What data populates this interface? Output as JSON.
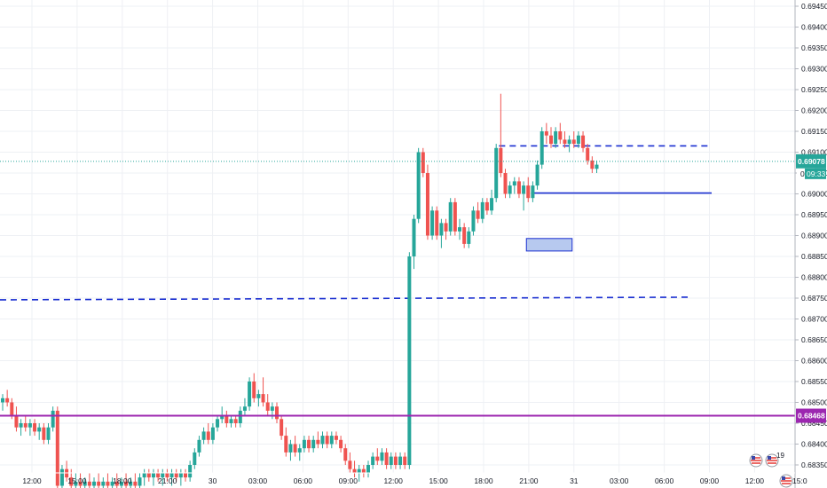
{
  "chart_data": {
    "type": "candlestick",
    "title": "",
    "xlabel": "",
    "ylabel": "",
    "grid": true,
    "ylim": [
      0.68335,
      0.69465
    ],
    "y_ticks": [
      "0.69450",
      "0.69400",
      "0.69350",
      "0.69300",
      "0.69250",
      "0.69200",
      "0.69150",
      "0.69100",
      "0.69050",
      "0.69000",
      "0.68950",
      "0.68900",
      "0.68850",
      "0.68800",
      "0.68750",
      "0.68700",
      "0.68650",
      "0.68600",
      "0.68550",
      "0.68500",
      "0.68450",
      "0.68400",
      "0.68350"
    ],
    "x_ticks": [
      "12:00",
      "15:00",
      "18:00",
      "21:00",
      "30",
      "03:00",
      "06:00",
      "09:00",
      "12:00",
      "15:00",
      "18:00",
      "21:00",
      "31",
      "03:00",
      "06:00",
      "09:00",
      "12:00",
      "15:0"
    ],
    "current_price": {
      "label": "0.69078",
      "countdown": "09:33",
      "value": 0.69078,
      "color": "#26a69a"
    },
    "price_marker": {
      "label": "0.68468",
      "value": 0.68468,
      "color": "#9c27b0"
    },
    "partial_tick": "0",
    "up_color": "#26a69a",
    "down_color": "#ef5350",
    "ohlc": [
      [
        0.685,
        0.6852,
        0.6848,
        0.6851
      ],
      [
        0.6851,
        0.6853,
        0.6849,
        0.685
      ],
      [
        0.685,
        0.6851,
        0.6846,
        0.6847
      ],
      [
        0.6847,
        0.6849,
        0.6843,
        0.6844
      ],
      [
        0.6844,
        0.6846,
        0.6842,
        0.6845
      ],
      [
        0.6845,
        0.6847,
        0.6843,
        0.6844
      ],
      [
        0.6844,
        0.6846,
        0.6842,
        0.6845
      ],
      [
        0.6845,
        0.6846,
        0.6842,
        0.6843
      ],
      [
        0.6843,
        0.6845,
        0.6841,
        0.6844
      ],
      [
        0.6844,
        0.6845,
        0.684,
        0.6841
      ],
      [
        0.6841,
        0.6845,
        0.684,
        0.6844
      ],
      [
        0.6844,
        0.6849,
        0.6843,
        0.6848
      ],
      [
        0.6848,
        0.6849,
        0.6828,
        0.683
      ],
      [
        0.683,
        0.6835,
        0.6828,
        0.6834
      ],
      [
        0.6834,
        0.6836,
        0.6831,
        0.6832
      ],
      [
        0.6832,
        0.6834,
        0.6828,
        0.683
      ],
      [
        0.683,
        0.6833,
        0.6828,
        0.6831
      ],
      [
        0.6831,
        0.6833,
        0.6828,
        0.683
      ],
      [
        0.683,
        0.6832,
        0.6828,
        0.6831
      ],
      [
        0.6831,
        0.6833,
        0.6829,
        0.683
      ],
      [
        0.683,
        0.6832,
        0.6828,
        0.6831
      ],
      [
        0.6831,
        0.6833,
        0.6829,
        0.683
      ],
      [
        0.683,
        0.6832,
        0.6828,
        0.6831
      ],
      [
        0.6831,
        0.6833,
        0.6829,
        0.683
      ],
      [
        0.683,
        0.6832,
        0.6828,
        0.6831
      ],
      [
        0.6831,
        0.6833,
        0.6829,
        0.683
      ],
      [
        0.683,
        0.6832,
        0.6828,
        0.6831
      ],
      [
        0.6831,
        0.6833,
        0.6829,
        0.683
      ],
      [
        0.683,
        0.6832,
        0.6828,
        0.6831
      ],
      [
        0.6831,
        0.6833,
        0.6829,
        0.683
      ],
      [
        0.683,
        0.6833,
        0.6828,
        0.6832
      ],
      [
        0.6832,
        0.6834,
        0.683,
        0.6833
      ],
      [
        0.6833,
        0.6834,
        0.6831,
        0.6832
      ],
      [
        0.6832,
        0.6834,
        0.683,
        0.6833
      ],
      [
        0.6833,
        0.6834,
        0.6831,
        0.6832
      ],
      [
        0.6832,
        0.6834,
        0.683,
        0.6833
      ],
      [
        0.6833,
        0.6834,
        0.6831,
        0.6832
      ],
      [
        0.6832,
        0.6834,
        0.683,
        0.6833
      ],
      [
        0.6833,
        0.6834,
        0.6831,
        0.6832
      ],
      [
        0.6832,
        0.6834,
        0.683,
        0.6833
      ],
      [
        0.6833,
        0.6834,
        0.6831,
        0.6832
      ],
      [
        0.6832,
        0.6836,
        0.6831,
        0.6835
      ],
      [
        0.6835,
        0.6839,
        0.6834,
        0.6838
      ],
      [
        0.6838,
        0.6842,
        0.6837,
        0.6841
      ],
      [
        0.6841,
        0.6844,
        0.684,
        0.6843
      ],
      [
        0.6843,
        0.6845,
        0.684,
        0.6841
      ],
      [
        0.6841,
        0.6845,
        0.684,
        0.6844
      ],
      [
        0.6844,
        0.6847,
        0.6843,
        0.6846
      ],
      [
        0.6846,
        0.6849,
        0.6845,
        0.6847
      ],
      [
        0.6847,
        0.6848,
        0.6844,
        0.6845
      ],
      [
        0.6845,
        0.6847,
        0.6844,
        0.6846
      ],
      [
        0.6846,
        0.6847,
        0.6844,
        0.6845
      ],
      [
        0.6845,
        0.6849,
        0.6844,
        0.6848
      ],
      [
        0.6848,
        0.6851,
        0.6847,
        0.6849
      ],
      [
        0.6849,
        0.6856,
        0.6848,
        0.6855
      ],
      [
        0.6855,
        0.6857,
        0.685,
        0.6851
      ],
      [
        0.6851,
        0.6853,
        0.6849,
        0.6852
      ],
      [
        0.6852,
        0.6856,
        0.6849,
        0.685
      ],
      [
        0.685,
        0.6852,
        0.6847,
        0.6848
      ],
      [
        0.6848,
        0.685,
        0.6846,
        0.6849
      ],
      [
        0.6849,
        0.685,
        0.6845,
        0.6846
      ],
      [
        0.6846,
        0.6847,
        0.6841,
        0.6842
      ],
      [
        0.6842,
        0.6844,
        0.6837,
        0.6838
      ],
      [
        0.6838,
        0.6841,
        0.6836,
        0.684
      ],
      [
        0.684,
        0.6842,
        0.6837,
        0.6838
      ],
      [
        0.6838,
        0.684,
        0.6836,
        0.6839
      ],
      [
        0.6839,
        0.6842,
        0.6838,
        0.6841
      ],
      [
        0.6841,
        0.6842,
        0.6838,
        0.6839
      ],
      [
        0.6839,
        0.6842,
        0.6838,
        0.6841
      ],
      [
        0.6841,
        0.6843,
        0.6839,
        0.684
      ],
      [
        0.684,
        0.6843,
        0.6839,
        0.6842
      ],
      [
        0.6842,
        0.6843,
        0.6839,
        0.684
      ],
      [
        0.684,
        0.6843,
        0.6839,
        0.6842
      ],
      [
        0.6842,
        0.6843,
        0.684,
        0.6841
      ],
      [
        0.6841,
        0.6842,
        0.6838,
        0.6839
      ],
      [
        0.6839,
        0.684,
        0.6835,
        0.6836
      ],
      [
        0.6836,
        0.6838,
        0.6833,
        0.6834
      ],
      [
        0.6834,
        0.6836,
        0.6832,
        0.6833
      ],
      [
        0.6833,
        0.6835,
        0.6831,
        0.6834
      ],
      [
        0.6834,
        0.6835,
        0.6832,
        0.6833
      ],
      [
        0.6833,
        0.6836,
        0.6832,
        0.6835
      ],
      [
        0.6835,
        0.6838,
        0.6834,
        0.6837
      ],
      [
        0.6837,
        0.6839,
        0.6835,
        0.6836
      ],
      [
        0.6836,
        0.6839,
        0.6835,
        0.6838
      ],
      [
        0.6838,
        0.6839,
        0.6834,
        0.6835
      ],
      [
        0.6835,
        0.6838,
        0.6834,
        0.6837
      ],
      [
        0.6837,
        0.6838,
        0.6834,
        0.6835
      ],
      [
        0.6835,
        0.6838,
        0.6834,
        0.6837
      ],
      [
        0.6837,
        0.6838,
        0.6834,
        0.6835
      ],
      [
        0.6835,
        0.6886,
        0.6834,
        0.6885
      ],
      [
        0.6885,
        0.6895,
        0.6882,
        0.6894
      ],
      [
        0.6894,
        0.6911,
        0.6893,
        0.691
      ],
      [
        0.691,
        0.6911,
        0.6904,
        0.6905
      ],
      [
        0.6905,
        0.6907,
        0.6889,
        0.689
      ],
      [
        0.689,
        0.6897,
        0.6889,
        0.6896
      ],
      [
        0.6896,
        0.6897,
        0.6889,
        0.689
      ],
      [
        0.689,
        0.6894,
        0.6887,
        0.6893
      ],
      [
        0.6893,
        0.6894,
        0.6889,
        0.6891
      ],
      [
        0.6891,
        0.6899,
        0.689,
        0.6898
      ],
      [
        0.6898,
        0.6899,
        0.689,
        0.6891
      ],
      [
        0.6891,
        0.6894,
        0.6889,
        0.6892
      ],
      [
        0.6892,
        0.6893,
        0.6887,
        0.6888
      ],
      [
        0.6888,
        0.6892,
        0.6887,
        0.6891
      ],
      [
        0.6891,
        0.6897,
        0.689,
        0.6896
      ],
      [
        0.6896,
        0.6898,
        0.6893,
        0.6894
      ],
      [
        0.6894,
        0.6899,
        0.6893,
        0.6898
      ],
      [
        0.6898,
        0.6899,
        0.6895,
        0.6896
      ],
      [
        0.6896,
        0.6901,
        0.6895,
        0.6899
      ],
      [
        0.6899,
        0.6912,
        0.6898,
        0.6911
      ],
      [
        0.6911,
        0.6924,
        0.6904,
        0.6905
      ],
      [
        0.6905,
        0.6906,
        0.6899,
        0.69
      ],
      [
        0.69,
        0.6903,
        0.6899,
        0.6902
      ],
      [
        0.6902,
        0.6904,
        0.69,
        0.6903
      ],
      [
        0.6903,
        0.6904,
        0.6899,
        0.69
      ],
      [
        0.69,
        0.6903,
        0.6896,
        0.6902
      ],
      [
        0.6902,
        0.6904,
        0.6898,
        0.6899
      ],
      [
        0.6899,
        0.6903,
        0.6898,
        0.6902
      ],
      [
        0.6902,
        0.6908,
        0.6901,
        0.6907
      ],
      [
        0.6907,
        0.6916,
        0.6906,
        0.6915
      ],
      [
        0.6915,
        0.6917,
        0.6912,
        0.6914
      ],
      [
        0.6914,
        0.6916,
        0.6911,
        0.6912
      ],
      [
        0.6912,
        0.6916,
        0.6911,
        0.6915
      ],
      [
        0.6915,
        0.6917,
        0.6912,
        0.6913
      ],
      [
        0.6913,
        0.6915,
        0.6911,
        0.6912
      ],
      [
        0.6912,
        0.6914,
        0.691,
        0.6913
      ],
      [
        0.6913,
        0.6915,
        0.6911,
        0.6912
      ],
      [
        0.6912,
        0.6915,
        0.6911,
        0.6914
      ],
      [
        0.6914,
        0.6915,
        0.691,
        0.6911
      ],
      [
        0.6911,
        0.6912,
        0.6907,
        0.6908
      ],
      [
        0.6908,
        0.6909,
        0.6905,
        0.6906
      ],
      [
        0.6906,
        0.6908,
        0.6905,
        0.6907
      ]
    ]
  },
  "drawings": {
    "dashed_resistance_top": {
      "value": 0.69115,
      "color": "#1a2fd1"
    },
    "dashed_support_bottom": {
      "value": 0.68748,
      "color": "#1a2fd1"
    },
    "solid_line": {
      "value": 0.69002,
      "color": "#1a2fd1"
    },
    "rectangle_zone": {
      "top": 0.68893,
      "bottom": 0.68863,
      "fill": "#aac0ec",
      "stroke": "#1a2fd1"
    }
  },
  "icons": [
    "us-flag-icon",
    "calendar-icon",
    "us-flag-icon"
  ],
  "badge_text": "19"
}
